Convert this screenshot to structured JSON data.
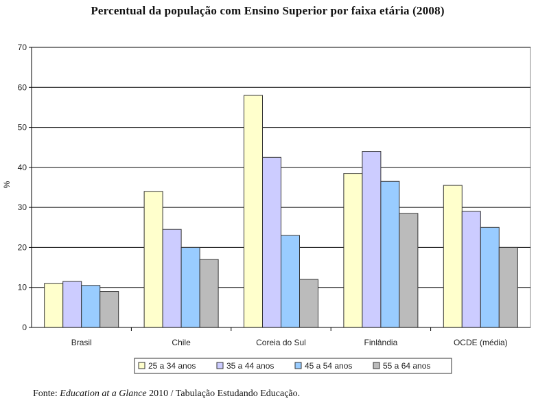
{
  "chart_data": {
    "type": "bar",
    "title": "Percentual da população com Ensino Superior por faixa etária (2008)",
    "ylabel": "%",
    "xlabel": "",
    "ylim": [
      0,
      70
    ],
    "yticks": [
      0,
      10,
      20,
      30,
      40,
      50,
      60,
      70
    ],
    "grid": true,
    "legend_position": "bottom",
    "categories": [
      "Brasil",
      "Chile",
      "Coreia do Sul",
      "Finlândia",
      "OCDE (média)"
    ],
    "series": [
      {
        "name": "25 a 34 anos",
        "color": "#FFFFCC",
        "values": [
          11,
          34,
          58,
          38.5,
          35.5
        ]
      },
      {
        "name": "35 a 44 anos",
        "color": "#CCCCFF",
        "values": [
          11.5,
          24.5,
          42.5,
          44,
          29
        ]
      },
      {
        "name": "45 a 54 anos",
        "color": "#99CCFF",
        "values": [
          10.5,
          20,
          23,
          36.5,
          25
        ]
      },
      {
        "name": "55 a 64 anos",
        "color": "#BBBBBB",
        "values": [
          9,
          17,
          12,
          28.5,
          20
        ]
      }
    ]
  },
  "source": {
    "prefix": "Fonte: ",
    "publication": "Education at a Glance",
    "suffix": " 2010 / Tabulação Estudando Educação."
  }
}
